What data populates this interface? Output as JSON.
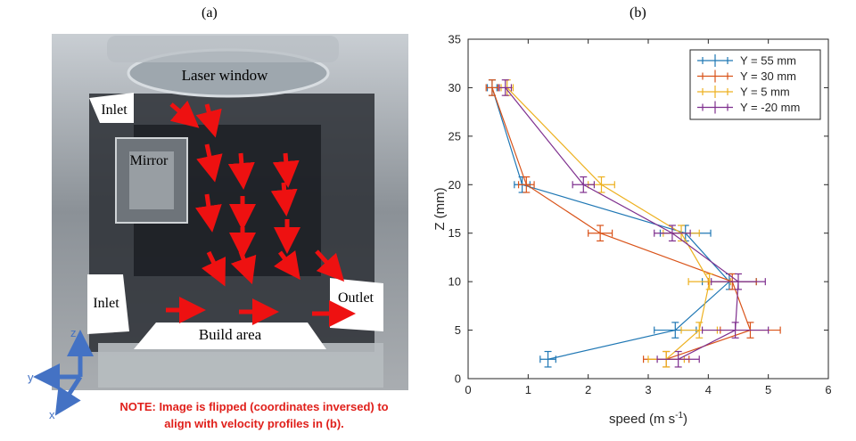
{
  "panel_a": {
    "label": "(a)",
    "labels": {
      "laser_window": "Laser window",
      "inlet_top": "Inlet",
      "mirror": "Mirror",
      "inlet_bottom": "Inlet",
      "outlet": "Outlet",
      "build_area": "Build area"
    },
    "axes": {
      "z": "z",
      "y": "y",
      "x": "x"
    },
    "note_line1": "NOTE: Image is flipped (coordinates inversed) to",
    "note_line2": "align with velocity profiles in (b).",
    "colors": {
      "arrow": "#ee1111",
      "axes": "#4472c4",
      "note": "#e0201b"
    }
  },
  "panel_b": {
    "label": "(b)"
  },
  "chart_data": {
    "type": "line",
    "xlabel_main": "speed (m s",
    "xlabel_sup": "-1",
    "xlabel_end": ")",
    "ylabel": "Z (mm)",
    "xlim": [
      0,
      6
    ],
    "ylim": [
      0,
      35
    ],
    "xticks": [
      "0",
      "1",
      "2",
      "3",
      "4",
      "5",
      "6"
    ],
    "yticks": [
      "0",
      "5",
      "10",
      "15",
      "20",
      "25",
      "30",
      "35"
    ],
    "legend_position": "top-right",
    "grid": false,
    "y": [
      2,
      5,
      10,
      15,
      20,
      30
    ],
    "series": [
      {
        "name": "Y = 55 mm",
        "color": "#1f77b4",
        "x": [
          1.33,
          3.45,
          4.35,
          3.62,
          0.9,
          0.4
        ],
        "xerr": [
          0.13,
          0.35,
          0.45,
          0.42,
          0.13,
          0.08
        ],
        "yerr": [
          0.8,
          0.8,
          0.8,
          0.8,
          0.8,
          0.8
        ]
      },
      {
        "name": "Y = 30 mm",
        "color": "#d95319",
        "x": [
          3.3,
          4.7,
          4.4,
          2.2,
          0.97,
          0.4
        ],
        "xerr": [
          0.38,
          0.5,
          0.4,
          0.2,
          0.13,
          0.1
        ],
        "yerr": [
          0.8,
          0.8,
          0.8,
          0.8,
          0.8,
          0.8
        ]
      },
      {
        "name": "Y = 5 mm",
        "color": "#edb120",
        "x": [
          3.3,
          3.85,
          4.02,
          3.55,
          2.22,
          0.65
        ],
        "xerr": [
          0.3,
          0.3,
          0.35,
          0.3,
          0.22,
          0.1
        ],
        "yerr": [
          0.8,
          0.8,
          0.8,
          0.8,
          0.8,
          0.8
        ]
      },
      {
        "name": "Y = -20 mm",
        "color": "#7e2f8e",
        "x": [
          3.5,
          4.45,
          4.5,
          3.4,
          1.92,
          0.62
        ],
        "xerr": [
          0.35,
          0.55,
          0.45,
          0.3,
          0.18,
          0.1
        ],
        "yerr": [
          0.8,
          0.8,
          0.8,
          0.8,
          0.8,
          0.8
        ]
      }
    ]
  }
}
